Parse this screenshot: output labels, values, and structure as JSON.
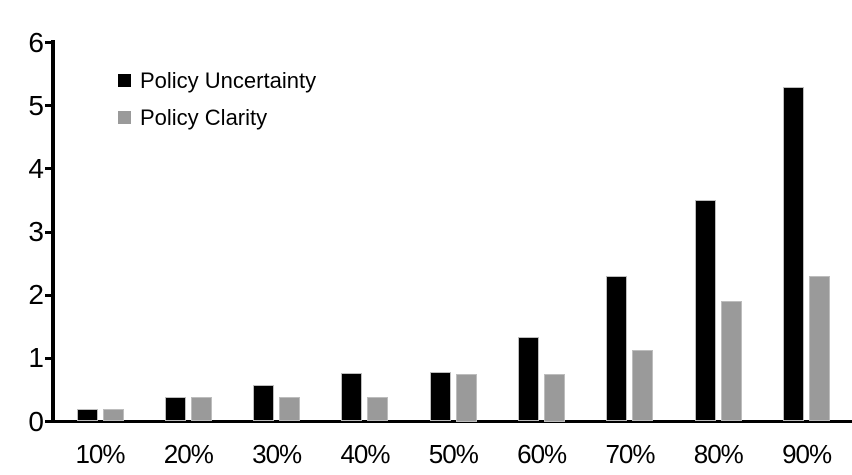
{
  "chart_data": {
    "type": "bar",
    "categories": [
      "10%",
      "20%",
      "30%",
      "40%",
      "50%",
      "60%",
      "70%",
      "80%",
      "90%"
    ],
    "series": [
      {
        "name": "Policy Uncertainty",
        "color": "#000000",
        "values": [
          0.19,
          0.38,
          0.57,
          0.76,
          0.78,
          1.33,
          2.3,
          3.5,
          5.3
        ]
      },
      {
        "name": "Policy Clarity",
        "color": "#9a9a9a",
        "values": [
          0.19,
          0.38,
          0.38,
          0.38,
          0.75,
          0.75,
          1.13,
          1.9,
          2.3
        ]
      }
    ],
    "title": "",
    "xlabel": "",
    "ylabel": "",
    "ylim": [
      0,
      6
    ],
    "yticks": [
      "0",
      "1",
      "2",
      "3",
      "4",
      "5",
      "6"
    ],
    "grid": false,
    "legend_position": "top-left-inside",
    "background_color": "#ffffff",
    "text_color": "#000000"
  }
}
